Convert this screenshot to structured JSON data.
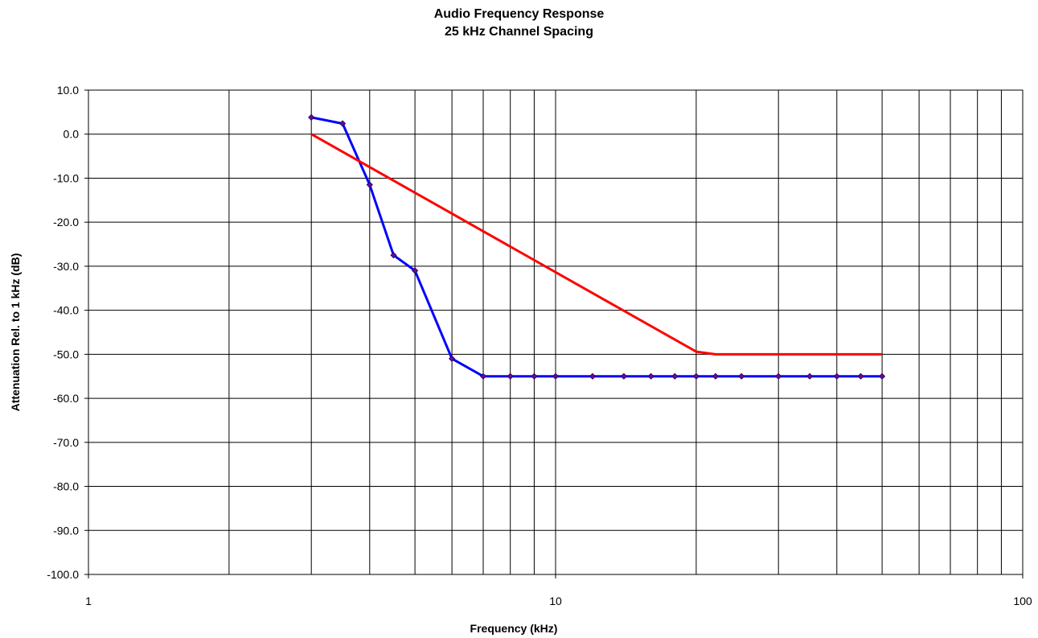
{
  "chart_data": {
    "type": "line",
    "title": "Audio Frequency Response",
    "subtitle": "25 kHz Channel Spacing",
    "xlabel": "Frequency (kHz)",
    "ylabel": "Attenuation Rel. to 1 kHz (dB)",
    "x_scale": "log",
    "xlim": [
      1,
      100
    ],
    "ylim": [
      -100,
      10
    ],
    "x_tick_labels": [
      "1",
      "10",
      "100"
    ],
    "y_tick_labels": [
      "10.0",
      "0.0",
      "-10.0",
      "-20.0",
      "-30.0",
      "-40.0",
      "-50.0",
      "-60.0",
      "-70.0",
      "-80.0",
      "-90.0",
      "-100.0"
    ],
    "grid": true,
    "legend": "none",
    "series": [
      {
        "color": "#0000ff",
        "marker_color": "#800080",
        "markers": true,
        "x": [
          3,
          3.5,
          4,
          4.5,
          5,
          6,
          7,
          8,
          9,
          10,
          12,
          14,
          16,
          18,
          20,
          22,
          25,
          30,
          35,
          40,
          45,
          50
        ],
        "y": [
          3.8,
          2.4,
          -11.5,
          -27.5,
          -31,
          -51,
          -55,
          -55,
          -55,
          -55,
          -55,
          -55,
          -55,
          -55,
          -55,
          -55,
          -55,
          -55,
          -55,
          -55,
          -55,
          -55
        ]
      },
      {
        "color": "#ff0000",
        "markers": false,
        "x": [
          3,
          20,
          22,
          50
        ],
        "y": [
          0,
          -49.4,
          -50,
          -50
        ]
      }
    ]
  }
}
